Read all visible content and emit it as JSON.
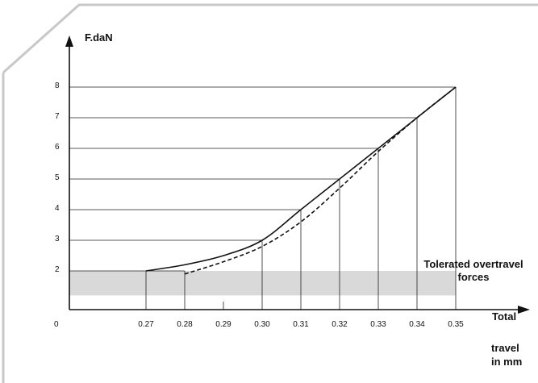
{
  "chart_data": {
    "type": "line",
    "title": "",
    "ylabel": "F.daN",
    "xlabel_lines": [
      "Total",
      "travel",
      "in mm"
    ],
    "origin_label": "0",
    "x_ticks": [
      "0.27",
      "0.28",
      "0.29",
      "0.30",
      "0.31",
      "0.32",
      "0.33",
      "0.34",
      "0.35"
    ],
    "y_ticks": [
      "2",
      "3",
      "4",
      "5",
      "6",
      "7",
      "8"
    ],
    "xlim": [
      0.27,
      0.35
    ],
    "ylim": [
      1,
      8
    ],
    "grid": "horizontal gridlines at each y tick; vertical drop lines at curve points",
    "series": [
      {
        "style": "solid",
        "x": [
          0.27,
          0.28,
          0.29,
          0.3,
          0.31,
          0.32,
          0.33,
          0.34,
          0.35
        ],
        "y": [
          2.0,
          2.2,
          2.5,
          3.0,
          4.0,
          5.0,
          6.0,
          7.0,
          8.0
        ]
      },
      {
        "style": "dashed",
        "x": [
          0.28,
          0.29,
          0.3,
          0.31,
          0.32,
          0.33,
          0.34,
          0.35
        ],
        "y": [
          1.9,
          2.3,
          2.8,
          3.6,
          4.7,
          5.9,
          7.0,
          8.0
        ]
      }
    ],
    "band": {
      "label_lines": [
        "Tolerated overtravel",
        "forces"
      ],
      "y_range": [
        1.2,
        2.0
      ],
      "color": "#d9d9da"
    },
    "colors": {
      "line": "#111111",
      "grid": "#222222",
      "frame": "#c8c8c8"
    }
  }
}
